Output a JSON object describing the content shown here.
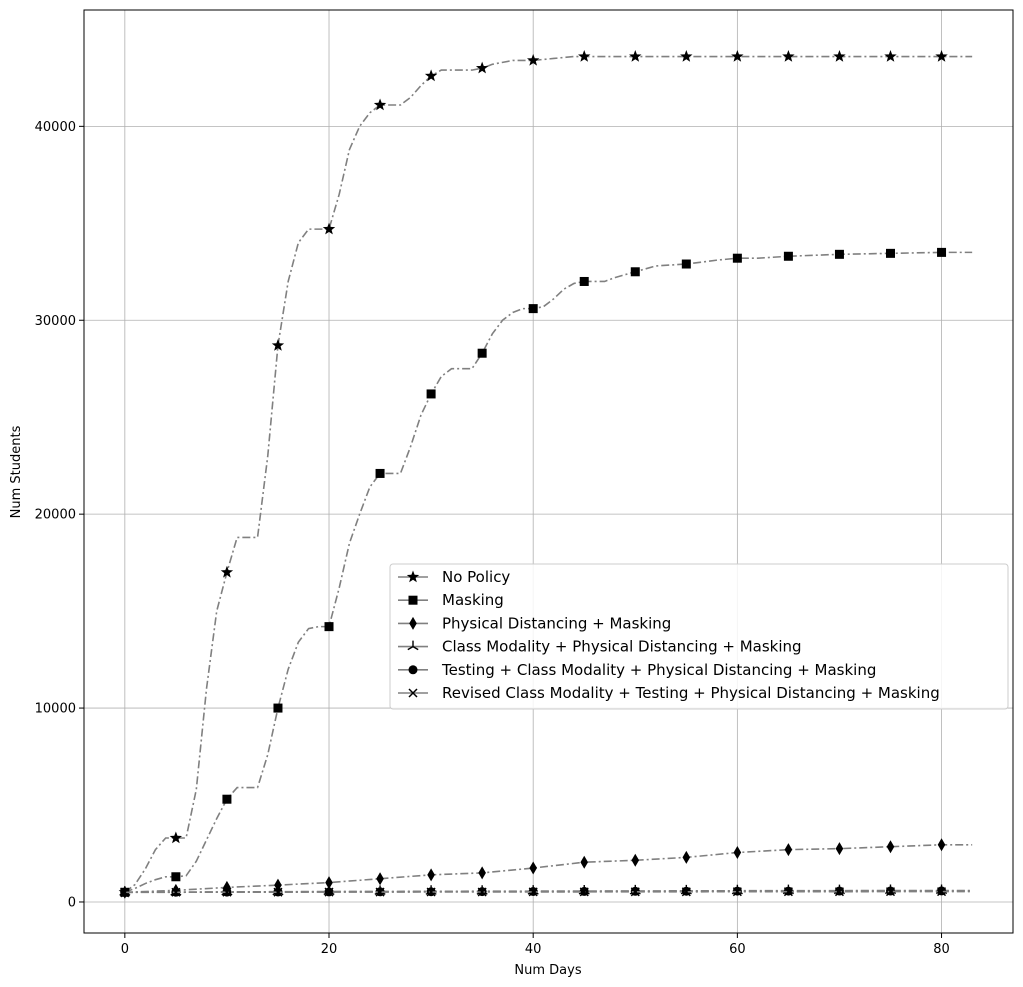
{
  "chart_data": {
    "type": "line",
    "title": "",
    "xlabel": "Num Days",
    "ylabel": "Num Students",
    "xlim": [
      -4,
      87
    ],
    "ylim": [
      -1600,
      46000
    ],
    "xticks": [
      0,
      20,
      40,
      60,
      80
    ],
    "yticks": [
      0,
      10000,
      20000,
      30000,
      40000
    ],
    "grid": true,
    "legend_position": "center-right",
    "line_color": "#808080",
    "marker_color": "#000000",
    "series": [
      {
        "name": "No Policy",
        "marker": "star",
        "curve_x": [
          0,
          1,
          2,
          3,
          4,
          5,
          6,
          7,
          8,
          9,
          10,
          11,
          12,
          13,
          14,
          15,
          16,
          17,
          18,
          19,
          20,
          21,
          22,
          23,
          24,
          25,
          26,
          27,
          28,
          29,
          30,
          31,
          32,
          33,
          34,
          35,
          36,
          37,
          38,
          39,
          40,
          42,
          44,
          46,
          48,
          50,
          55,
          60,
          65,
          70,
          75,
          80,
          83
        ],
        "curve_y": [
          500,
          900,
          1700,
          2700,
          3300,
          3300,
          3300,
          5800,
          11000,
          15000,
          17000,
          18800,
          18800,
          18800,
          23000,
          28700,
          32000,
          34000,
          34700,
          34700,
          34700,
          36500,
          38800,
          40000,
          40700,
          41100,
          41100,
          41100,
          41500,
          42100,
          42600,
          42900,
          42900,
          42900,
          42900,
          43000,
          43200,
          43300,
          43400,
          43400,
          43400,
          43500,
          43600,
          43600,
          43600,
          43600,
          43600,
          43600,
          43600,
          43600,
          43600,
          43600,
          43600
        ],
        "marker_x": [
          0,
          5,
          10,
          15,
          20,
          25,
          30,
          35,
          40,
          45,
          50,
          55,
          60,
          65,
          70,
          75,
          80
        ],
        "marker_y": [
          500,
          3300,
          17000,
          28700,
          34700,
          41100,
          42600,
          43000,
          43400,
          43600,
          43600,
          43600,
          43600,
          43600,
          43600,
          43600,
          43600
        ]
      },
      {
        "name": "Masking",
        "marker": "square",
        "curve_x": [
          0,
          1,
          2,
          3,
          4,
          5,
          6,
          7,
          8,
          9,
          10,
          11,
          12,
          13,
          14,
          15,
          16,
          17,
          18,
          19,
          20,
          21,
          22,
          23,
          24,
          25,
          26,
          27,
          28,
          29,
          30,
          31,
          32,
          33,
          34,
          35,
          36,
          37,
          38,
          39,
          40,
          41,
          42,
          43,
          44,
          45,
          46,
          47,
          48,
          50,
          52,
          55,
          58,
          60,
          62,
          65,
          70,
          75,
          80,
          83
        ],
        "curve_y": [
          500,
          700,
          950,
          1150,
          1300,
          1300,
          1350,
          2100,
          3200,
          4300,
          5300,
          5900,
          5900,
          5900,
          7600,
          10000,
          12000,
          13400,
          14100,
          14200,
          14200,
          16200,
          18500,
          20000,
          21400,
          22100,
          22100,
          22100,
          23500,
          25100,
          26200,
          27100,
          27500,
          27500,
          27500,
          28300,
          29300,
          30000,
          30400,
          30600,
          30600,
          30700,
          31100,
          31600,
          31900,
          32000,
          32000,
          32000,
          32200,
          32500,
          32800,
          32900,
          33100,
          33200,
          33200,
          33300,
          33400,
          33450,
          33500,
          33500
        ],
        "marker_x": [
          0,
          5,
          10,
          15,
          20,
          25,
          30,
          35,
          40,
          45,
          50,
          55,
          60,
          65,
          70,
          75,
          80
        ],
        "marker_y": [
          500,
          1300,
          5300,
          10000,
          14200,
          22100,
          26200,
          28300,
          30600,
          32000,
          32500,
          32900,
          33200,
          33300,
          33400,
          33450,
          33500
        ]
      },
      {
        "name": "Physical Distancing + Masking",
        "marker": "thin-diamond",
        "curve_x": [
          0,
          5,
          10,
          15,
          20,
          25,
          30,
          35,
          40,
          45,
          50,
          55,
          60,
          65,
          70,
          75,
          80,
          83
        ],
        "curve_y": [
          500,
          600,
          750,
          870,
          1000,
          1200,
          1400,
          1500,
          1750,
          2050,
          2150,
          2300,
          2550,
          2700,
          2750,
          2850,
          2950,
          2950
        ],
        "marker_x": [
          0,
          5,
          10,
          15,
          20,
          25,
          30,
          35,
          40,
          45,
          50,
          55,
          60,
          65,
          70,
          75,
          80
        ],
        "marker_y": [
          500,
          600,
          750,
          870,
          1000,
          1200,
          1400,
          1500,
          1750,
          2050,
          2150,
          2300,
          2550,
          2700,
          2750,
          2850,
          2950
        ]
      },
      {
        "name": "Class Modality + Physical Distancing + Masking",
        "marker": "tri-up",
        "curve_x": [
          0,
          5,
          10,
          15,
          20,
          25,
          30,
          35,
          40,
          45,
          50,
          55,
          60,
          65,
          70,
          75,
          80,
          83
        ],
        "curve_y": [
          500,
          510,
          520,
          530,
          540,
          545,
          550,
          555,
          560,
          565,
          570,
          575,
          580,
          585,
          585,
          590,
          590,
          590
        ],
        "marker_x": [
          0,
          5,
          10,
          15,
          20,
          25,
          30,
          35,
          40,
          45,
          50,
          55,
          60,
          65,
          70,
          75,
          80
        ],
        "marker_y": [
          500,
          510,
          520,
          530,
          540,
          545,
          550,
          555,
          560,
          565,
          570,
          575,
          580,
          585,
          585,
          590,
          590
        ]
      },
      {
        "name": "Testing + Class Modality + Physical Distancing + Masking",
        "marker": "circle",
        "curve_x": [
          0,
          5,
          10,
          15,
          20,
          25,
          30,
          35,
          40,
          45,
          50,
          55,
          60,
          65,
          70,
          75,
          80,
          83
        ],
        "curve_y": [
          500,
          505,
          510,
          515,
          520,
          525,
          530,
          535,
          540,
          545,
          550,
          555,
          560,
          560,
          565,
          565,
          570,
          570
        ],
        "marker_x": [
          0,
          5,
          10,
          15,
          20,
          25,
          30,
          35,
          40,
          45,
          50,
          55,
          60,
          65,
          70,
          75,
          80
        ],
        "marker_y": [
          500,
          505,
          510,
          515,
          520,
          525,
          530,
          535,
          540,
          545,
          550,
          555,
          560,
          560,
          565,
          565,
          570
        ]
      },
      {
        "name": "Revised Class Modality + Testing + Physical Distancing + Masking",
        "marker": "x",
        "curve_x": [
          0,
          5,
          10,
          15,
          20,
          25,
          30,
          35,
          40,
          45,
          50,
          55,
          60,
          65,
          70,
          75,
          80,
          83
        ],
        "curve_y": [
          500,
          500,
          505,
          505,
          510,
          510,
          515,
          515,
          520,
          520,
          525,
          525,
          530,
          530,
          530,
          535,
          535,
          535
        ],
        "marker_x": [
          0,
          5,
          10,
          15,
          20,
          25,
          30,
          35,
          40,
          45,
          50,
          55,
          60,
          65,
          70,
          75,
          80
        ],
        "marker_y": [
          500,
          500,
          505,
          505,
          510,
          510,
          515,
          515,
          520,
          520,
          525,
          525,
          530,
          530,
          530,
          535,
          535
        ]
      }
    ]
  }
}
